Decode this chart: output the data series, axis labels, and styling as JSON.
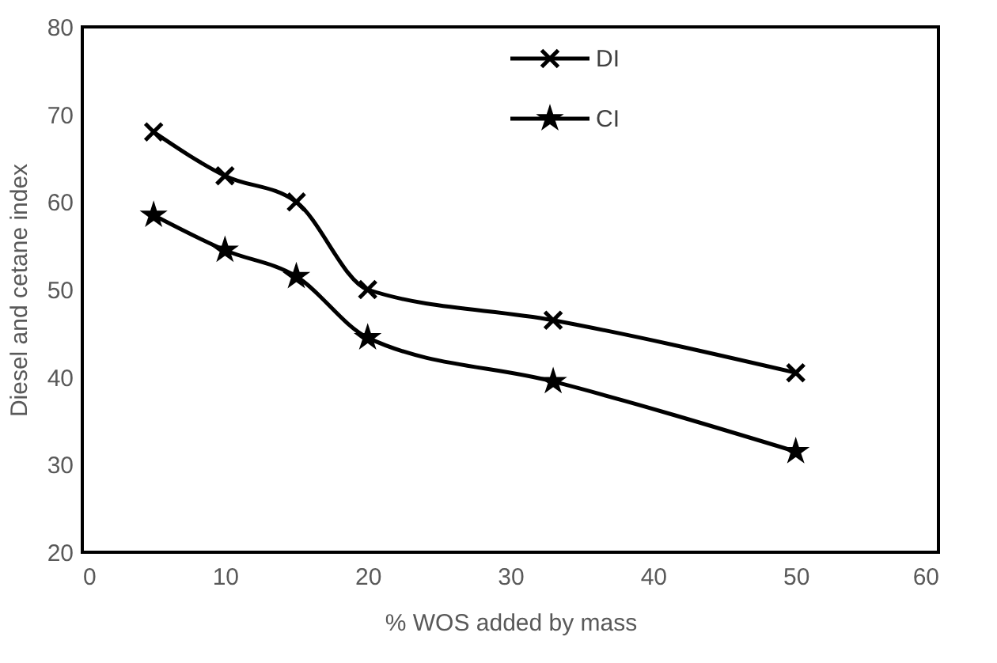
{
  "chart_data": {
    "type": "line",
    "xlabel": "% WOS added by mass",
    "ylabel": "Diesel and cetane index",
    "x": [
      5,
      10,
      15,
      20,
      33,
      50
    ],
    "series": [
      {
        "name": "DI",
        "color": "#000000",
        "marker": "cross",
        "values": [
          68,
          63,
          60,
          50,
          46.5,
          40.5
        ]
      },
      {
        "name": "CI",
        "color": "#000000",
        "marker": "star",
        "values": [
          58.5,
          54.5,
          51.5,
          44.5,
          39.5,
          31.5
        ]
      }
    ],
    "xlim": [
      0,
      60
    ],
    "xticks": [
      0,
      10,
      20,
      30,
      40,
      50,
      60
    ],
    "ylim": [
      20,
      80
    ],
    "yticks": [
      20,
      30,
      40,
      50,
      60,
      70,
      80
    ],
    "grid": false,
    "legend": "top",
    "line_style": "solid"
  }
}
